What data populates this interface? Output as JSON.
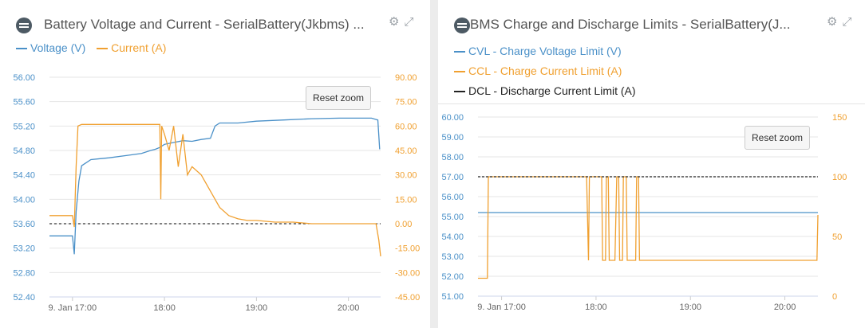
{
  "panels": {
    "left": {
      "title": "Battery Voltage and Current - SerialBattery(Jkbms) ...",
      "legend": [
        {
          "label": "Voltage (V)",
          "color": "#4a90c8"
        },
        {
          "label": "Current (A)",
          "color": "#f0a030"
        }
      ],
      "reset_zoom": "Reset zoom",
      "icons": [
        "gear-icon",
        "expand-icon"
      ]
    },
    "right": {
      "title": "BMS Charge and Discharge Limits - SerialBattery(J...",
      "legend": [
        {
          "label": "CVL - Charge Voltage Limit (V)",
          "color": "#4a90c8"
        },
        {
          "label": "CCL - Charge Current Limit (A)",
          "color": "#f0a030"
        },
        {
          "label": "DCL - Discharge Current Limit (A)",
          "color": "#222222"
        }
      ],
      "reset_zoom": "Reset zoom",
      "icons": [
        "gear-icon",
        "expand-icon"
      ]
    }
  },
  "chart_data": [
    {
      "type": "line",
      "title": "Battery Voltage and Current - SerialBattery(Jkbms) ...",
      "x_ticks": [
        "9. Jan 17:00",
        "18:00",
        "19:00",
        "20:00"
      ],
      "x_range_hours": [
        16.75,
        20.35
      ],
      "y_left": {
        "label": "",
        "ticks": [
          "56.00",
          "55.60",
          "55.20",
          "54.80",
          "54.40",
          "54.00",
          "53.60",
          "53.20",
          "52.80",
          "52.40"
        ],
        "range": [
          52.4,
          56.0
        ]
      },
      "y_right": {
        "label": "",
        "ticks": [
          "90.00",
          "75.00",
          "60.00",
          "45.00",
          "30.00",
          "15.00",
          "0.00",
          "-15.00",
          "-30.00",
          "-45.00"
        ],
        "range": [
          -45,
          90
        ]
      },
      "zero_line_right": 0,
      "series": [
        {
          "name": "Voltage (V)",
          "axis": "left",
          "color": "#4a90c8",
          "x": [
            16.75,
            17.0,
            17.02,
            17.04,
            17.07,
            17.1,
            17.2,
            17.4,
            17.6,
            17.75,
            17.85,
            17.9,
            17.95,
            18.0,
            18.1,
            18.2,
            18.3,
            18.4,
            18.5,
            18.55,
            18.6,
            18.8,
            19.0,
            19.3,
            19.6,
            19.9,
            20.1,
            20.25,
            20.32,
            20.34
          ],
          "y": [
            53.4,
            53.4,
            53.1,
            53.8,
            54.3,
            54.55,
            54.65,
            54.68,
            54.72,
            54.75,
            54.8,
            54.82,
            54.85,
            54.9,
            54.93,
            54.96,
            54.95,
            54.98,
            55.0,
            55.2,
            55.25,
            55.25,
            55.28,
            55.3,
            55.32,
            55.33,
            55.33,
            55.33,
            55.3,
            54.82
          ]
        },
        {
          "name": "Current (A)",
          "axis": "right",
          "color": "#f0a030",
          "x": [
            16.75,
            17.0,
            17.02,
            17.04,
            17.06,
            17.1,
            17.3,
            17.6,
            17.9,
            17.95,
            17.96,
            17.97,
            18.0,
            18.05,
            18.1,
            18.15,
            18.2,
            18.25,
            18.3,
            18.4,
            18.5,
            18.6,
            18.7,
            18.8,
            18.9,
            19.0,
            19.2,
            19.4,
            19.6,
            19.8,
            20.0,
            20.2,
            20.3,
            20.33,
            20.35
          ],
          "y": [
            5,
            5,
            -2,
            35,
            60,
            61,
            61,
            61,
            61,
            61,
            15,
            60,
            55,
            45,
            60,
            35,
            55,
            30,
            35,
            30,
            20,
            10,
            5,
            3,
            2,
            2,
            1,
            1,
            0,
            0,
            0,
            0,
            0,
            -10,
            -20
          ]
        }
      ]
    },
    {
      "type": "line",
      "title": "BMS Charge and Discharge Limits - SerialBattery(J...",
      "x_ticks": [
        "9. Jan 17:00",
        "18:00",
        "19:00",
        "20:00"
      ],
      "x_range_hours": [
        16.75,
        20.35
      ],
      "y_left": {
        "label": "",
        "ticks": [
          "60.00",
          "59.00",
          "58.00",
          "57.00",
          "56.00",
          "55.00",
          "54.00",
          "53.00",
          "52.00",
          "51.00"
        ],
        "range": [
          51,
          60
        ]
      },
      "y_right": {
        "label": "",
        "ticks": [
          "150",
          "100",
          "50",
          "0"
        ],
        "range": [
          0,
          150
        ]
      },
      "series": [
        {
          "name": "CVL - Charge Voltage Limit (V)",
          "axis": "left",
          "color": "#4a90c8",
          "x": [
            16.75,
            20.35
          ],
          "y": [
            55.2,
            55.2
          ]
        },
        {
          "name": "CCL - Charge Current Limit (A)",
          "axis": "right",
          "color": "#f0a030",
          "x": [
            16.75,
            16.85,
            16.86,
            17.9,
            17.92,
            17.93,
            18.06,
            18.07,
            18.1,
            18.11,
            18.13,
            18.14,
            18.2,
            18.22,
            18.24,
            18.25,
            18.28,
            18.29,
            18.32,
            18.33,
            18.42,
            18.43,
            18.45,
            18.46,
            20.34,
            20.35
          ],
          "y": [
            15,
            15,
            100,
            100,
            30,
            100,
            100,
            30,
            30,
            100,
            100,
            30,
            30,
            100,
            100,
            30,
            30,
            100,
            100,
            30,
            30,
            100,
            100,
            30,
            30,
            68
          ]
        },
        {
          "name": "DCL - Discharge Current Limit (A)",
          "axis": "right",
          "color": "#222222",
          "x": [
            16.75,
            20.35
          ],
          "y": [
            100,
            100
          ]
        }
      ]
    }
  ]
}
